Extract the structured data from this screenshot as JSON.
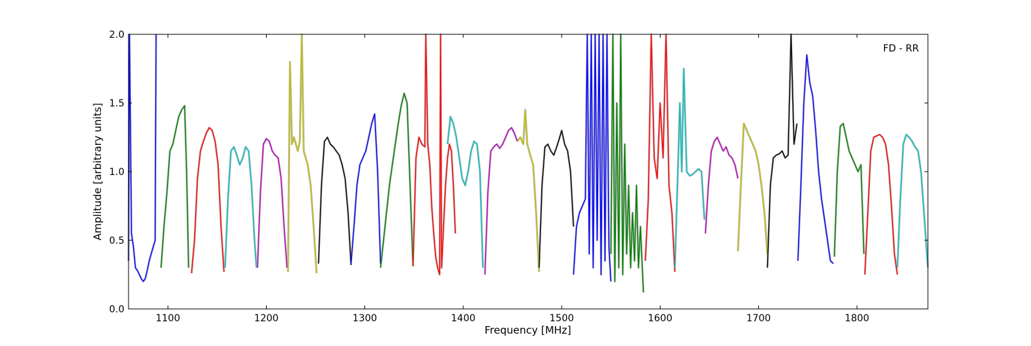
{
  "chart_data": {
    "type": "line",
    "title": "",
    "annotation": "FD - RR",
    "xlabel": "Frequency [MHz]",
    "ylabel": "Amplitude [arbitrary units]",
    "xlim": [
      1060,
      1872
    ],
    "ylim": [
      0.0,
      2.0
    ],
    "x_ticks": [
      1100,
      1200,
      1300,
      1400,
      1500,
      1600,
      1700,
      1800
    ],
    "x_tick_labels": [
      "1100",
      "1200",
      "1300",
      "1400",
      "1500",
      "1600",
      "1700",
      "1800"
    ],
    "y_ticks": [
      0.0,
      0.5,
      1.0,
      1.5,
      2.0
    ],
    "y_tick_labels": [
      "0.0",
      "0.5",
      "1.0",
      "1.5",
      "2.0"
    ],
    "grid": false,
    "legend": "none",
    "background_trace_color": "#bfbfbf",
    "series": [
      {
        "color": "#0000ff",
        "x": [
          1060,
          1061,
          1063,
          1065,
          1067,
          1069,
          1071,
          1073,
          1075,
          1077,
          1079,
          1081,
          1083,
          1085,
          1087,
          1088
        ],
        "y": [
          0.35,
          2.0,
          0.55,
          0.45,
          0.3,
          0.28,
          0.25,
          0.22,
          0.2,
          0.22,
          0.28,
          0.35,
          0.4,
          0.45,
          0.5,
          2.0
        ]
      },
      {
        "color": "#008000",
        "x": [
          1093,
          1096,
          1099,
          1102,
          1105,
          1108,
          1111,
          1114,
          1117,
          1119,
          1121
        ],
        "y": [
          0.3,
          0.6,
          0.85,
          1.15,
          1.2,
          1.3,
          1.4,
          1.45,
          1.48,
          1.0,
          0.3
        ]
      },
      {
        "color": "#ff0000",
        "x": [
          1124,
          1127,
          1130,
          1133,
          1136,
          1139,
          1142,
          1145,
          1148,
          1151,
          1154,
          1157
        ],
        "y": [
          0.26,
          0.5,
          0.95,
          1.15,
          1.22,
          1.28,
          1.32,
          1.3,
          1.22,
          1.05,
          0.6,
          0.27
        ]
      },
      {
        "color": "#00bfbf",
        "x": [
          1158,
          1161,
          1164,
          1167,
          1170,
          1173,
          1176,
          1179,
          1182,
          1185,
          1188,
          1190
        ],
        "y": [
          0.3,
          0.8,
          1.15,
          1.18,
          1.12,
          1.05,
          1.1,
          1.18,
          1.15,
          0.9,
          0.5,
          0.3
        ]
      },
      {
        "color": "#bf00bf",
        "x": [
          1191,
          1194,
          1197,
          1200,
          1203,
          1206,
          1209,
          1212,
          1215,
          1218,
          1221
        ],
        "y": [
          0.3,
          0.85,
          1.2,
          1.24,
          1.22,
          1.15,
          1.12,
          1.1,
          0.95,
          0.6,
          0.3
        ]
      },
      {
        "color": "#bfbf00",
        "x": [
          1222,
          1224,
          1226,
          1228,
          1230,
          1232,
          1234,
          1236,
          1238,
          1240,
          1242,
          1245,
          1248,
          1251
        ],
        "y": [
          0.27,
          1.8,
          1.2,
          1.25,
          1.2,
          1.15,
          1.22,
          2.0,
          1.15,
          1.1,
          1.05,
          0.9,
          0.6,
          0.26
        ]
      },
      {
        "color": "#000000",
        "x": [
          1253,
          1256,
          1259,
          1262,
          1265,
          1268,
          1271,
          1274,
          1277,
          1280,
          1283,
          1286
        ],
        "y": [
          0.33,
          0.9,
          1.22,
          1.25,
          1.2,
          1.18,
          1.15,
          1.12,
          1.05,
          0.95,
          0.7,
          0.32
        ]
      },
      {
        "color": "#0000ff",
        "x": [
          1286,
          1289,
          1292,
          1295,
          1298,
          1301,
          1304,
          1307,
          1310,
          1313,
          1316
        ],
        "y": [
          0.33,
          0.6,
          0.9,
          1.05,
          1.1,
          1.15,
          1.25,
          1.35,
          1.42,
          1.0,
          0.33
        ]
      },
      {
        "color": "#008000",
        "x": [
          1316,
          1319,
          1322,
          1325,
          1328,
          1331,
          1334,
          1337,
          1340,
          1343,
          1346,
          1349
        ],
        "y": [
          0.3,
          0.5,
          0.7,
          0.9,
          1.05,
          1.2,
          1.35,
          1.48,
          1.57,
          1.5,
          0.9,
          0.31
        ]
      },
      {
        "color": "#ff0000",
        "x": [
          1349,
          1352,
          1355,
          1358,
          1361,
          1362,
          1364,
          1366,
          1368,
          1370,
          1372,
          1374,
          1376,
          1377,
          1378,
          1380,
          1382,
          1384,
          1386,
          1388,
          1390,
          1392
        ],
        "y": [
          0.31,
          1.1,
          1.25,
          1.2,
          1.18,
          2.0,
          1.2,
          1.05,
          0.75,
          0.55,
          0.38,
          0.3,
          0.25,
          2.0,
          0.3,
          0.6,
          0.9,
          1.1,
          1.2,
          1.15,
          0.9,
          0.55
        ]
      },
      {
        "color": "#00bfbf",
        "x": [
          1384,
          1387,
          1390,
          1393,
          1396,
          1399,
          1402,
          1405,
          1408,
          1411,
          1414,
          1417,
          1420
        ],
        "y": [
          1.2,
          1.4,
          1.35,
          1.25,
          1.1,
          0.95,
          0.9,
          1.0,
          1.15,
          1.22,
          1.2,
          1.0,
          0.3
        ]
      },
      {
        "color": "#bf00bf",
        "x": [
          1422,
          1425,
          1428,
          1431,
          1434,
          1437,
          1440,
          1443,
          1446,
          1449,
          1452,
          1455
        ],
        "y": [
          0.25,
          0.85,
          1.15,
          1.18,
          1.2,
          1.17,
          1.2,
          1.25,
          1.3,
          1.32,
          1.28,
          1.22
        ]
      },
      {
        "color": "#bfbf00",
        "x": [
          1455,
          1458,
          1461,
          1463,
          1465,
          1468,
          1471,
          1474,
          1477
        ],
        "y": [
          1.22,
          1.25,
          1.2,
          1.45,
          1.2,
          1.12,
          1.05,
          0.7,
          0.27
        ]
      },
      {
        "color": "#000000",
        "x": [
          1477,
          1480,
          1483,
          1486,
          1489,
          1492,
          1495,
          1498,
          1500,
          1503,
          1506,
          1509,
          1512
        ],
        "y": [
          0.3,
          0.9,
          1.18,
          1.2,
          1.15,
          1.12,
          1.18,
          1.25,
          1.3,
          1.2,
          1.15,
          1.0,
          0.6
        ]
      },
      {
        "color": "#0000ff",
        "x": [
          1512,
          1515,
          1518,
          1521,
          1524,
          1526,
          1528,
          1530,
          1532,
          1534,
          1536,
          1538,
          1540,
          1542,
          1544,
          1546,
          1548,
          1550
        ],
        "y": [
          0.25,
          0.6,
          0.7,
          0.75,
          0.8,
          2.0,
          0.4,
          2.0,
          0.3,
          2.0,
          0.5,
          2.0,
          0.25,
          2.0,
          0.35,
          2.0,
          0.45,
          0.2
        ]
      },
      {
        "color": "#008000",
        "x": [
          1550,
          1552,
          1554,
          1556,
          1558,
          1560,
          1562,
          1564,
          1566,
          1568,
          1570,
          1572,
          1574,
          1576,
          1578,
          1580,
          1583
        ],
        "y": [
          0.4,
          2.0,
          0.2,
          1.5,
          0.3,
          2.0,
          0.25,
          1.2,
          0.4,
          0.9,
          0.3,
          0.7,
          0.35,
          0.9,
          0.3,
          0.6,
          0.12
        ]
      },
      {
        "color": "#ff0000",
        "x": [
          1585,
          1588,
          1591,
          1594,
          1597,
          1600,
          1603,
          1606,
          1609,
          1612,
          1615
        ],
        "y": [
          0.35,
          0.8,
          2.0,
          1.1,
          0.95,
          1.5,
          1.1,
          2.0,
          0.9,
          0.7,
          0.27
        ]
      },
      {
        "color": "#00bfbf",
        "x": [
          1615,
          1618,
          1620,
          1622,
          1624,
          1627,
          1630,
          1633,
          1636,
          1639,
          1642,
          1645
        ],
        "y": [
          0.3,
          1.0,
          1.5,
          1.0,
          1.75,
          1.0,
          0.97,
          0.98,
          1.0,
          1.02,
          1.0,
          0.65
        ]
      },
      {
        "color": "#bf00bf",
        "x": [
          1646,
          1649,
          1652,
          1655,
          1658,
          1661,
          1664,
          1667,
          1670,
          1673,
          1676,
          1679
        ],
        "y": [
          0.55,
          0.9,
          1.15,
          1.22,
          1.25,
          1.2,
          1.15,
          1.18,
          1.12,
          1.1,
          1.05,
          0.95
        ]
      },
      {
        "color": "#bfbf00",
        "x": [
          1679,
          1682,
          1685,
          1688,
          1691,
          1694,
          1697,
          1700,
          1703,
          1706,
          1709
        ],
        "y": [
          0.42,
          0.9,
          1.35,
          1.3,
          1.25,
          1.2,
          1.15,
          1.05,
          0.9,
          0.7,
          0.4
        ]
      },
      {
        "color": "#000000",
        "x": [
          1709,
          1712,
          1715,
          1718,
          1721,
          1724,
          1727,
          1730,
          1733,
          1736,
          1739
        ],
        "y": [
          0.3,
          0.9,
          1.1,
          1.12,
          1.13,
          1.15,
          1.1,
          1.12,
          2.0,
          1.2,
          1.35
        ]
      },
      {
        "color": "#0000ff",
        "x": [
          1740,
          1743,
          1746,
          1749,
          1752,
          1755,
          1758,
          1761,
          1764,
          1767,
          1770,
          1773,
          1776
        ],
        "y": [
          0.35,
          0.9,
          1.5,
          1.85,
          1.65,
          1.55,
          1.3,
          1.0,
          0.8,
          0.65,
          0.5,
          0.35,
          0.33
        ]
      },
      {
        "color": "#008000",
        "x": [
          1777,
          1780,
          1783,
          1786,
          1789,
          1792,
          1795,
          1798,
          1801,
          1804,
          1807
        ],
        "y": [
          0.38,
          1.0,
          1.33,
          1.35,
          1.25,
          1.15,
          1.1,
          1.05,
          1.0,
          1.05,
          0.4
        ]
      },
      {
        "color": "#ff0000",
        "x": [
          1808,
          1811,
          1814,
          1817,
          1820,
          1823,
          1826,
          1829,
          1832,
          1835,
          1838,
          1841
        ],
        "y": [
          0.25,
          0.7,
          1.15,
          1.25,
          1.26,
          1.27,
          1.25,
          1.2,
          1.05,
          0.75,
          0.4,
          0.25
        ]
      },
      {
        "color": "#00bfbf",
        "x": [
          1841,
          1844,
          1847,
          1850,
          1853,
          1856,
          1859,
          1862,
          1865,
          1868,
          1872
        ],
        "y": [
          0.3,
          0.8,
          1.2,
          1.27,
          1.25,
          1.22,
          1.18,
          1.15,
          1.0,
          0.7,
          0.3
        ]
      }
    ]
  }
}
